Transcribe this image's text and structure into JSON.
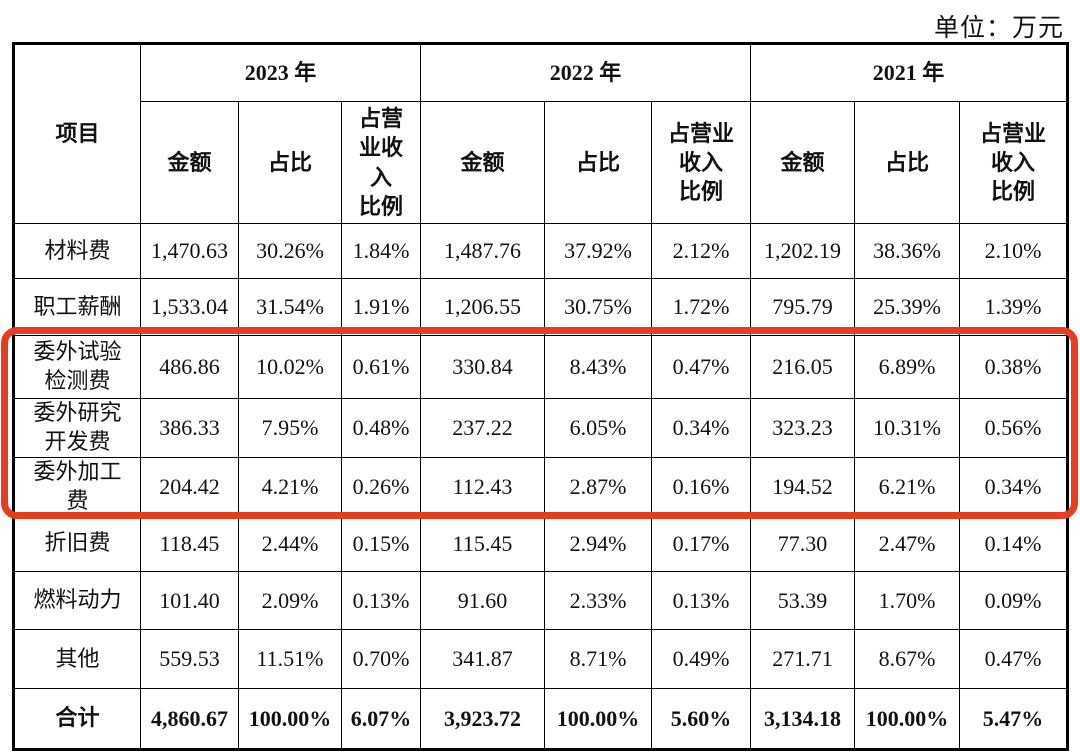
{
  "unit_label": "单位：万元",
  "colors": {
    "highlight_box": "#e73c1f",
    "table_border": "#000000",
    "text": "#111111",
    "background": "#ffffff"
  },
  "table": {
    "item_header": "项目",
    "year_groups": [
      {
        "label": "2023 年",
        "sub": [
          "金额",
          "占比",
          "占营\n业收\n入\n比例"
        ]
      },
      {
        "label": "2022 年",
        "sub": [
          "金额",
          "占比",
          "占营业\n收入\n比例"
        ]
      },
      {
        "label": "2021 年",
        "sub": [
          "金额",
          "占比",
          "占营业\n收入\n比例"
        ]
      }
    ],
    "rows": [
      {
        "item": "材料费",
        "highlighted": false,
        "total": false,
        "cells": [
          "1,470.63",
          "30.26%",
          "1.84%",
          "1,487.76",
          "37.92%",
          "2.12%",
          "1,202.19",
          "38.36%",
          "2.10%"
        ]
      },
      {
        "item": "职工薪酬",
        "highlighted": false,
        "total": false,
        "cells": [
          "1,533.04",
          "31.54%",
          "1.91%",
          "1,206.55",
          "30.75%",
          "1.72%",
          "795.79",
          "25.39%",
          "1.39%"
        ]
      },
      {
        "item": "委外试验\n检测费",
        "highlighted": true,
        "total": false,
        "cells": [
          "486.86",
          "10.02%",
          "0.61%",
          "330.84",
          "8.43%",
          "0.47%",
          "216.05",
          "6.89%",
          "0.38%"
        ]
      },
      {
        "item": "委外研究\n开发费",
        "highlighted": true,
        "total": false,
        "cells": [
          "386.33",
          "7.95%",
          "0.48%",
          "237.22",
          "6.05%",
          "0.34%",
          "323.23",
          "10.31%",
          "0.56%"
        ]
      },
      {
        "item": "委外加工\n费",
        "highlighted": true,
        "total": false,
        "cells": [
          "204.42",
          "4.21%",
          "0.26%",
          "112.43",
          "2.87%",
          "0.16%",
          "194.52",
          "6.21%",
          "0.34%"
        ]
      },
      {
        "item": "折旧费",
        "highlighted": false,
        "total": false,
        "cells": [
          "118.45",
          "2.44%",
          "0.15%",
          "115.45",
          "2.94%",
          "0.17%",
          "77.30",
          "2.47%",
          "0.14%"
        ]
      },
      {
        "item": "燃料动力",
        "highlighted": false,
        "total": false,
        "cells": [
          "101.40",
          "2.09%",
          "0.13%",
          "91.60",
          "2.33%",
          "0.13%",
          "53.39",
          "1.70%",
          "0.09%"
        ]
      },
      {
        "item": "其他",
        "highlighted": false,
        "total": false,
        "cells": [
          "559.53",
          "11.51%",
          "0.70%",
          "341.87",
          "8.71%",
          "0.49%",
          "271.71",
          "8.67%",
          "0.47%"
        ]
      },
      {
        "item": "合计",
        "highlighted": false,
        "total": true,
        "cells": [
          "4,860.67",
          "100.00%",
          "6.07%",
          "3,923.72",
          "100.00%",
          "5.60%",
          "3,134.18",
          "100.00%",
          "5.47%"
        ]
      }
    ]
  }
}
